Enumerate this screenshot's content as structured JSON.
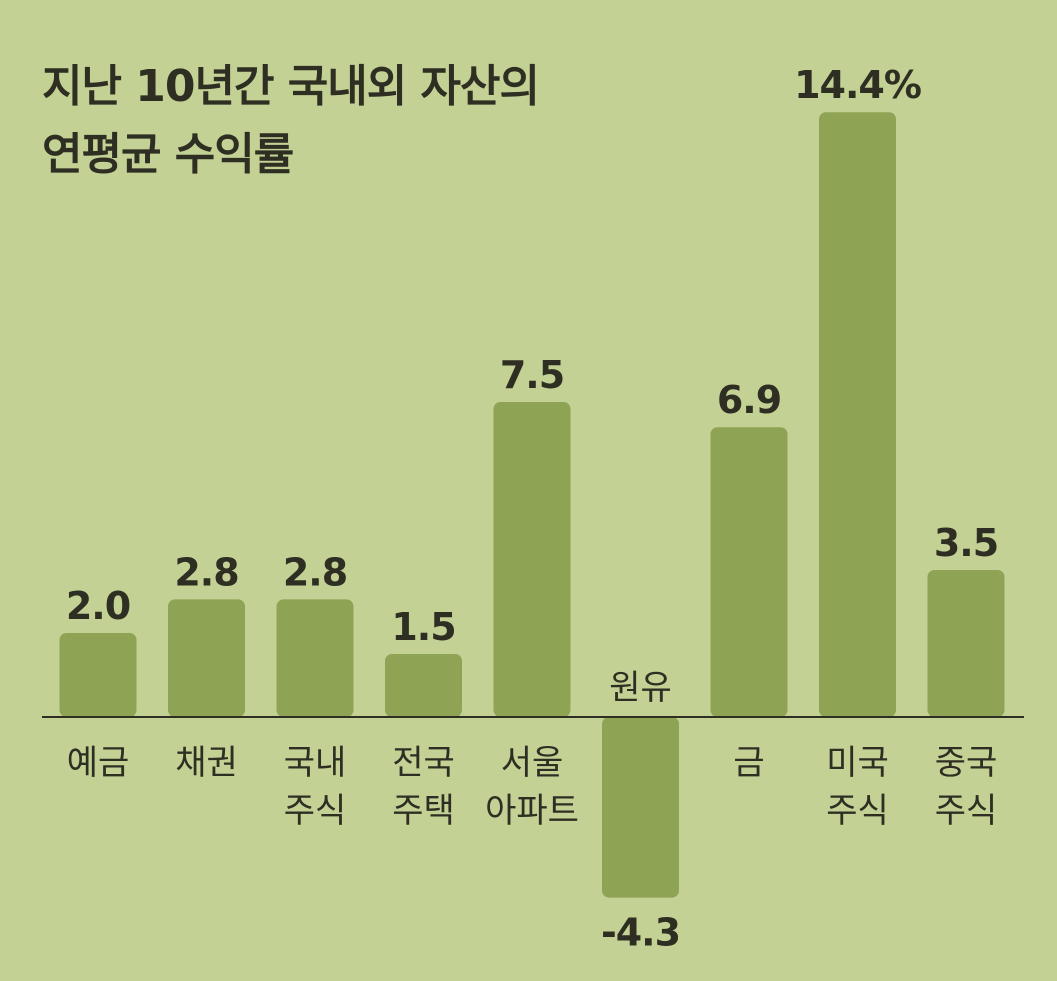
{
  "title_lines": [
    "지난 10년간 국내외 자산의",
    "연평균 수익률"
  ],
  "colors": {
    "background": "#c3d195",
    "bar": "#8ea354",
    "axis": "#2e2e22",
    "text": "#2e2e22"
  },
  "chart_data": {
    "type": "bar",
    "title": "지난 10년간 국내외 자산의 연평균 수익률",
    "categories": [
      [
        "예금"
      ],
      [
        "채권"
      ],
      [
        "국내",
        "주식"
      ],
      [
        "전국",
        "주택"
      ],
      [
        "서울",
        "아파트"
      ],
      [
        "원유"
      ],
      [
        "금"
      ],
      [
        "미국",
        "주식"
      ],
      [
        "중국",
        "주식"
      ]
    ],
    "values": [
      2.0,
      2.8,
      2.8,
      1.5,
      7.5,
      -4.3,
      6.9,
      14.4,
      3.5
    ],
    "value_labels": [
      "2.0",
      "2.8",
      "2.8",
      "1.5",
      "7.5",
      "-4.3",
      "6.9",
      "14.4%",
      "3.5"
    ],
    "xlabel": "",
    "ylabel": "",
    "grid": false,
    "legend": "none"
  }
}
